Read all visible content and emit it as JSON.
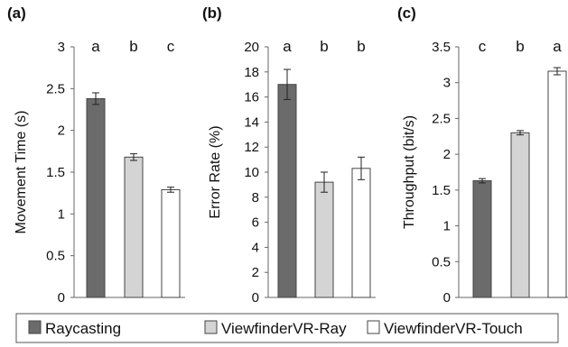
{
  "legend": {
    "items": [
      {
        "label": "Raycasting",
        "color": "#6b6b6b"
      },
      {
        "label": "ViewfinderVR-Ray",
        "color": "#d4d4d4"
      },
      {
        "label": "ViewfinderVR-Touch",
        "color": "#ffffff"
      }
    ]
  },
  "chart_data": [
    {
      "type": "bar",
      "panel_label": "(a)",
      "categories": [
        "Raycasting",
        "ViewfinderVR-Ray",
        "ViewfinderVR-Touch"
      ],
      "values": [
        2.38,
        1.68,
        1.29
      ],
      "errors": [
        0.07,
        0.04,
        0.03
      ],
      "significance_letters": [
        "a",
        "b",
        "c"
      ],
      "ylabel": "Movement Time (s)",
      "ylim": [
        0,
        3
      ],
      "yticks": [
        0,
        0.5,
        1,
        1.5,
        2,
        2.5,
        3
      ],
      "ytick_labels": [
        "0",
        "0.5",
        "1",
        "1.5",
        "2",
        "2.5",
        "3"
      ]
    },
    {
      "type": "bar",
      "panel_label": "(b)",
      "categories": [
        "Raycasting",
        "ViewfinderVR-Ray",
        "ViewfinderVR-Touch"
      ],
      "values": [
        17.0,
        9.2,
        10.3
      ],
      "errors": [
        1.2,
        0.8,
        0.9
      ],
      "significance_letters": [
        "a",
        "b",
        "b"
      ],
      "ylabel": "Error Rate (%)",
      "ylim": [
        0,
        20
      ],
      "yticks": [
        0,
        2,
        4,
        6,
        8,
        10,
        12,
        14,
        16,
        18,
        20
      ],
      "ytick_labels": [
        "0",
        "2",
        "4",
        "6",
        "8",
        "10",
        "12",
        "14",
        "16",
        "18",
        "20"
      ]
    },
    {
      "type": "bar",
      "panel_label": "(c)",
      "categories": [
        "Raycasting",
        "ViewfinderVR-Ray",
        "ViewfinderVR-Touch"
      ],
      "values": [
        1.63,
        2.3,
        3.16
      ],
      "errors": [
        0.03,
        0.03,
        0.05
      ],
      "significance_letters": [
        "c",
        "b",
        "a"
      ],
      "ylabel": "Throughput (bit/s)",
      "ylim": [
        0,
        3.5
      ],
      "yticks": [
        0,
        0.5,
        1,
        1.5,
        2,
        2.5,
        3,
        3.5
      ],
      "ytick_labels": [
        "0",
        "0.5",
        "1",
        "1.5",
        "2",
        "2.5",
        "3",
        "3.5"
      ]
    }
  ]
}
